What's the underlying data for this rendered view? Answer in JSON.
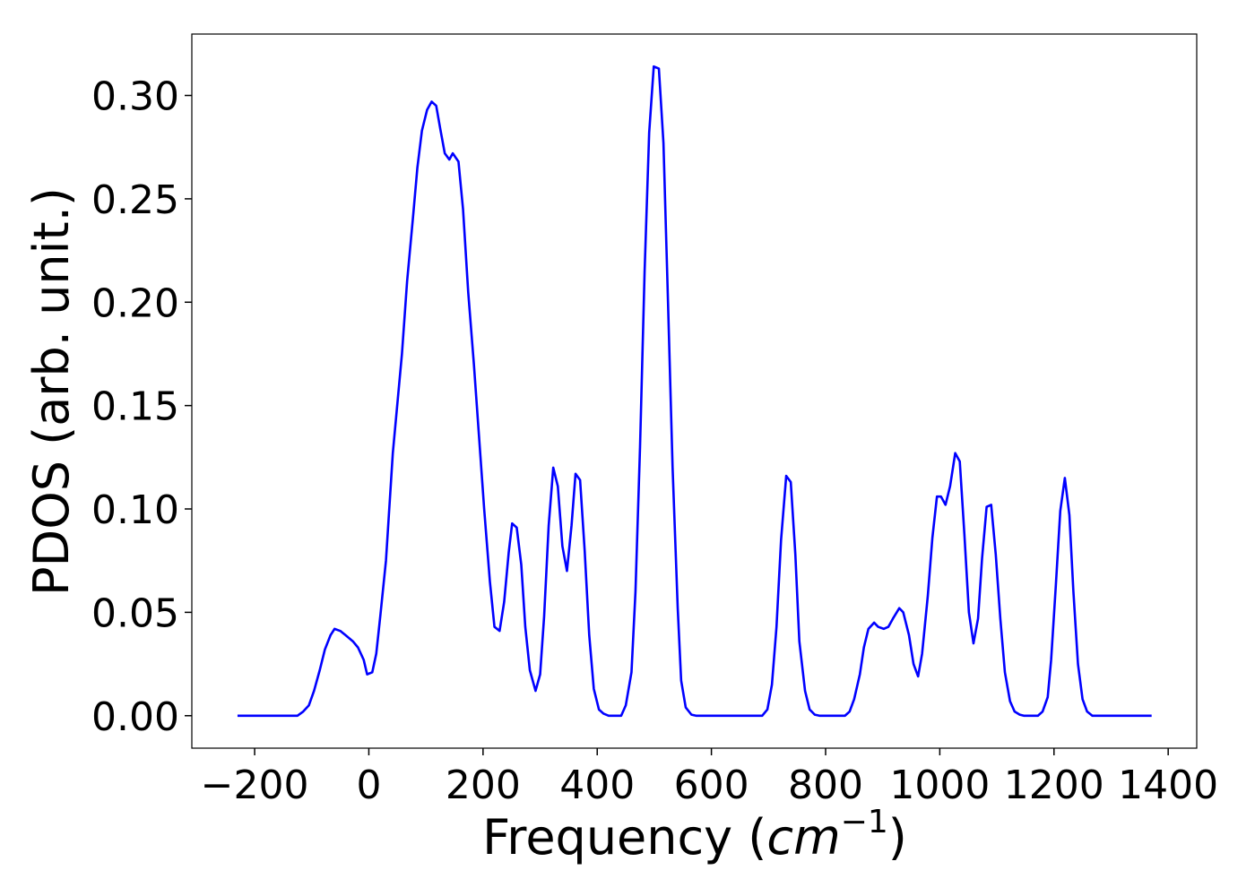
{
  "chart_data": {
    "type": "line",
    "xlabel": {
      "text": "Frequency (",
      "unit": "cm",
      "exponent": "−1",
      "close": ")"
    },
    "ylabel": "PDOS (arb. unit.)",
    "xlim": [
      -310,
      1450
    ],
    "ylim": [
      -0.0157,
      0.3297
    ],
    "xticks": [
      {
        "value": -200,
        "label": "−200"
      },
      0,
      200,
      400,
      600,
      800,
      1000,
      1200,
      1400
    ],
    "yticks": [
      {
        "value": 0,
        "label": "0.00"
      },
      0.05,
      {
        "value": 0.1,
        "label": "0.10"
      },
      0.15,
      {
        "value": 0.2,
        "label": "0.20"
      },
      0.25,
      {
        "value": 0.3,
        "label": "0.30"
      }
    ],
    "series": [
      {
        "color": "#0000ff",
        "x": [
          -230,
          -125,
          -115,
          -105,
          -96,
          -86,
          -77,
          -67,
          -60,
          -50,
          -41,
          -28,
          -19,
          -9,
          -3,
          6,
          13,
          20,
          30,
          42,
          58,
          67,
          77,
          85,
          93,
          102,
          110,
          118,
          125,
          133,
          141,
          147,
          157,
          165,
          174,
          184,
          193,
          202,
          212,
          220,
          229,
          237,
          245,
          251,
          259,
          267,
          274,
          282,
          292,
          300,
          307,
          315,
          323,
          331,
          339,
          347,
          355,
          362,
          370,
          378,
          386,
          394,
          403,
          411,
          420,
          442,
          450,
          460,
          467,
          475,
          483,
          491,
          499,
          508,
          516,
          524,
          532,
          541,
          547,
          555,
          565,
          573,
          689,
          698,
          706,
          714,
          722,
          731,
          739,
          747,
          754,
          764,
          772,
          781,
          789,
          834,
          842,
          850,
          860,
          867,
          875,
          885,
          892,
          902,
          910,
          918,
          929,
          936,
          946,
          954,
          962,
          969,
          979,
          987,
          995,
          1002,
          1010,
          1018,
          1027,
          1035,
          1043,
          1051,
          1059,
          1067,
          1074,
          1082,
          1090,
          1098,
          1106,
          1114,
          1123,
          1131,
          1140,
          1147,
          1172,
          1180,
          1189,
          1195,
          1203,
          1211,
          1219,
          1227,
          1234,
          1242,
          1250,
          1258,
          1267,
          1371
        ],
        "values": [
          0,
          0,
          0.002,
          0.005,
          0.012,
          0.022,
          0.032,
          0.039,
          0.042,
          0.041,
          0.039,
          0.036,
          0.033,
          0.027,
          0.02,
          0.021,
          0.03,
          0.048,
          0.075,
          0.127,
          0.175,
          0.21,
          0.24,
          0.265,
          0.283,
          0.293,
          0.297,
          0.295,
          0.284,
          0.272,
          0.269,
          0.272,
          0.268,
          0.245,
          0.205,
          0.17,
          0.135,
          0.1,
          0.065,
          0.043,
          0.041,
          0.055,
          0.079,
          0.093,
          0.091,
          0.073,
          0.043,
          0.022,
          0.012,
          0.02,
          0.048,
          0.092,
          0.12,
          0.111,
          0.082,
          0.07,
          0.092,
          0.117,
          0.114,
          0.08,
          0.039,
          0.013,
          0.003,
          0.001,
          0,
          0,
          0.005,
          0.021,
          0.06,
          0.13,
          0.215,
          0.282,
          0.314,
          0.313,
          0.277,
          0.2,
          0.12,
          0.052,
          0.017,
          0.004,
          0.0005,
          0,
          0,
          0.003,
          0.015,
          0.043,
          0.085,
          0.116,
          0.113,
          0.078,
          0.036,
          0.012,
          0.003,
          0.0005,
          0,
          0,
          0.002,
          0.008,
          0.02,
          0.033,
          0.042,
          0.045,
          0.043,
          0.042,
          0.043,
          0.047,
          0.052,
          0.05,
          0.039,
          0.025,
          0.019,
          0.03,
          0.058,
          0.086,
          0.106,
          0.106,
          0.102,
          0.111,
          0.127,
          0.123,
          0.088,
          0.05,
          0.035,
          0.047,
          0.076,
          0.101,
          0.102,
          0.078,
          0.047,
          0.021,
          0.007,
          0.002,
          0.0005,
          0,
          0,
          0.002,
          0.009,
          0.027,
          0.062,
          0.099,
          0.115,
          0.097,
          0.06,
          0.025,
          0.008,
          0.002,
          0,
          0
        ]
      }
    ]
  }
}
